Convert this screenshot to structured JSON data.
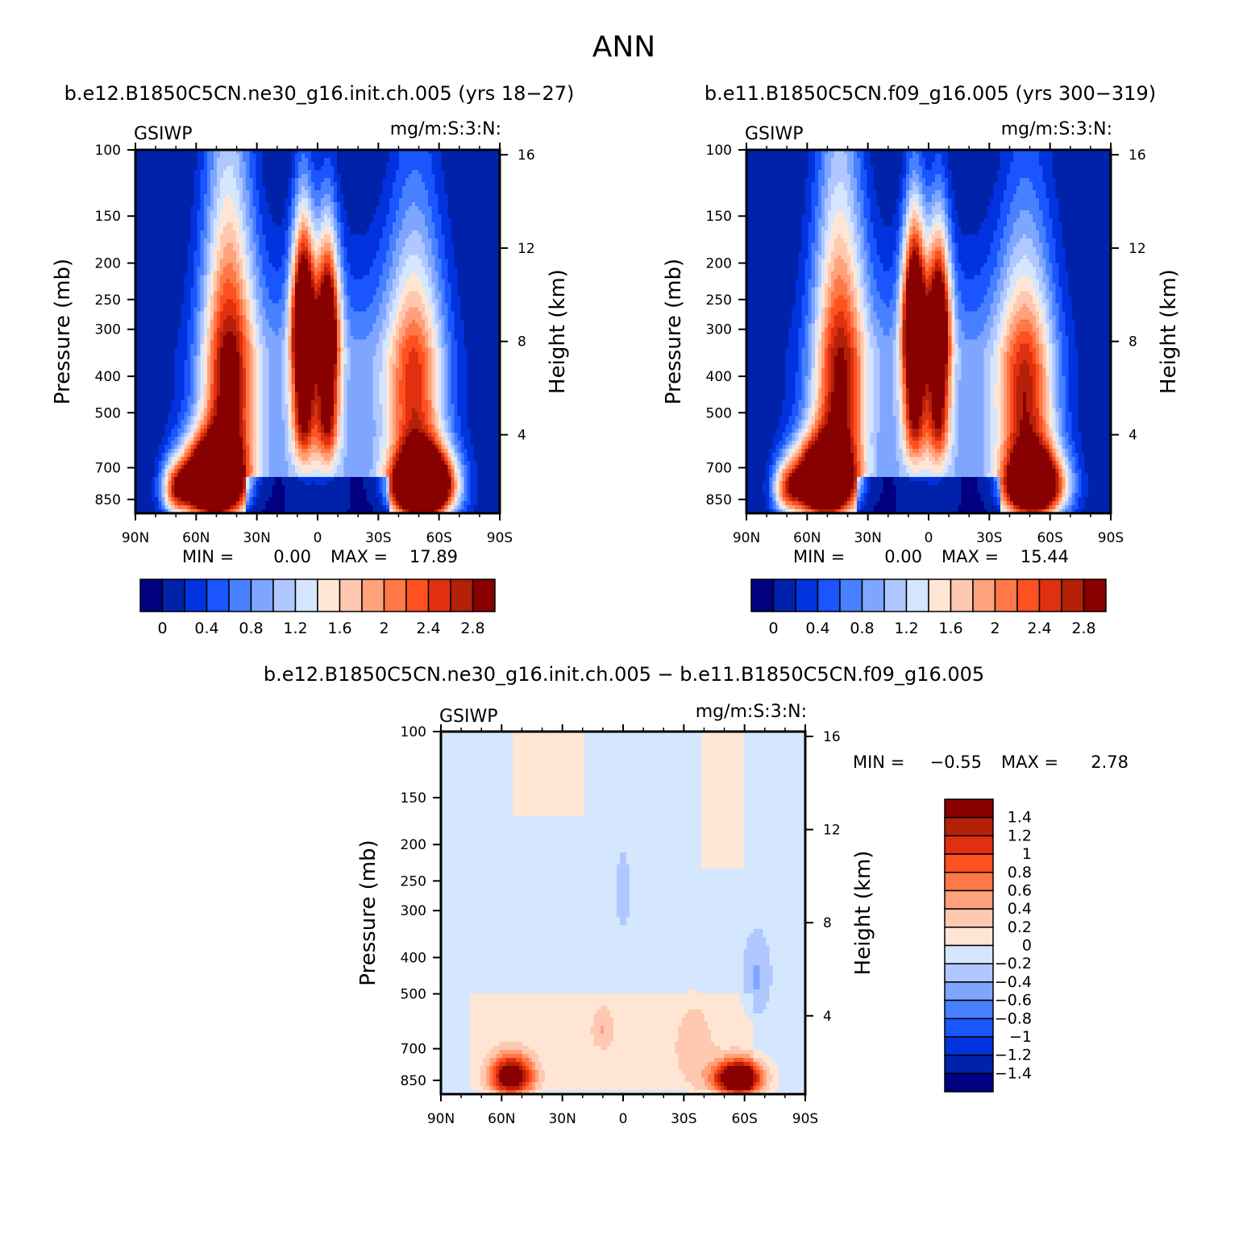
{
  "figure_title": "ANN",
  "palettes": {
    "abs": [
      "#000080",
      "#0022aa",
      "#0033dd",
      "#1a55ff",
      "#4781ff",
      "#7fa6ff",
      "#b0c8ff",
      "#d5e6ff",
      "#ffe6d4",
      "#ffc8b0",
      "#ffa17a",
      "#ff7848",
      "#ff5020",
      "#e03010",
      "#b42008",
      "#880000"
    ],
    "diff": [
      "#000080",
      "#0022aa",
      "#0033dd",
      "#1a55ff",
      "#4781ff",
      "#7fa6ff",
      "#b0c8ff",
      "#d5e6ff",
      "#ffe6d4",
      "#ffc8b0",
      "#ffa17a",
      "#ff7848",
      "#ff5020",
      "#e03010",
      "#b42008",
      "#880000"
    ]
  },
  "chart_data": [
    {
      "id": "case",
      "type": "heatmap",
      "title": "b.e12.B1850C5CN.ne30_g16.init.ch.005 (yrs 18−27)",
      "left_label": "GSIWP",
      "right_label": "mg/m:S:3:N:",
      "ylabel": "Pressure (mb)",
      "ylabel_right": "Height (km)",
      "x_ticks": [
        "90N",
        "60N",
        "30N",
        "0",
        "30S",
        "60S",
        "90S"
      ],
      "xlim": [
        90,
        -90
      ],
      "y_ticks": [
        100,
        150,
        200,
        250,
        300,
        400,
        500,
        700,
        850
      ],
      "ylim": [
        100,
        925
      ],
      "y_scale": "log",
      "right_ticks": [
        16,
        12,
        8,
        4
      ],
      "stats": {
        "min_label": "MIN =",
        "min": "0.00",
        "max_label": "MAX =",
        "max": "17.89"
      },
      "colorbar": {
        "orientation": "horizontal",
        "labels": [
          "0",
          "0.4",
          "0.8",
          "1.2",
          "1.6",
          "2",
          "2.4",
          "2.8"
        ]
      },
      "levels": [
        -0.1,
        0.2,
        0.4,
        0.6,
        0.8,
        1.0,
        1.2,
        1.4,
        1.6,
        1.8,
        2.0,
        2.2,
        2.4,
        2.6,
        2.8
      ],
      "field": {
        "features": [
          {
            "lat": 52,
            "p": 760,
            "amp": 5.5,
            "slat": 10,
            "sp": 120
          },
          {
            "lat": 44,
            "p": 400,
            "amp": 2.6,
            "slat": 9,
            "sp": 240
          },
          {
            "lat": 70,
            "p": 800,
            "amp": 1.8,
            "slat": 5,
            "sp": 90
          },
          {
            "lat": 7,
            "p": 270,
            "amp": 3.4,
            "slat": 4,
            "sp": 90
          },
          {
            "lat": 7,
            "p": 480,
            "amp": 2.2,
            "slat": 4,
            "sp": 130
          },
          {
            "lat": -5,
            "p": 280,
            "amp": 2.9,
            "slat": 4,
            "sp": 90
          },
          {
            "lat": -5,
            "p": 500,
            "amp": 2.0,
            "slat": 4,
            "sp": 120
          },
          {
            "lat": -52,
            "p": 780,
            "amp": 6.0,
            "slat": 10,
            "sp": 110
          },
          {
            "lat": -48,
            "p": 420,
            "amp": 2.1,
            "slat": 10,
            "sp": 200
          }
        ],
        "background": 1.1,
        "top_fade": 230,
        "near_surface_cutoff": 740
      }
    },
    {
      "id": "control",
      "type": "heatmap",
      "title": "b.e11.B1850C5CN.f09_g16.005 (yrs 300−319)",
      "left_label": "GSIWP",
      "right_label": "mg/m:S:3:N:",
      "ylabel": "Pressure (mb)",
      "ylabel_right": "Height (km)",
      "x_ticks": [
        "90N",
        "60N",
        "30N",
        "0",
        "30S",
        "60S",
        "90S"
      ],
      "xlim": [
        90,
        -90
      ],
      "y_ticks": [
        100,
        150,
        200,
        250,
        300,
        400,
        500,
        700,
        850
      ],
      "ylim": [
        100,
        925
      ],
      "y_scale": "log",
      "right_ticks": [
        16,
        12,
        8,
        4
      ],
      "stats": {
        "min_label": "MIN =",
        "min": "0.00",
        "max_label": "MAX =",
        "max": "15.44"
      },
      "colorbar": {
        "orientation": "horizontal",
        "labels": [
          "0",
          "0.4",
          "0.8",
          "1.2",
          "1.6",
          "2",
          "2.4",
          "2.8"
        ]
      },
      "levels": [
        -0.1,
        0.2,
        0.4,
        0.6,
        0.8,
        1.0,
        1.2,
        1.4,
        1.6,
        1.8,
        2.0,
        2.2,
        2.4,
        2.6,
        2.8
      ],
      "field": {
        "features": [
          {
            "lat": 52,
            "p": 760,
            "amp": 5.0,
            "slat": 10,
            "sp": 120
          },
          {
            "lat": 44,
            "p": 400,
            "amp": 2.4,
            "slat": 9,
            "sp": 240
          },
          {
            "lat": 70,
            "p": 800,
            "amp": 1.6,
            "slat": 5,
            "sp": 90
          },
          {
            "lat": 7,
            "p": 270,
            "amp": 3.6,
            "slat": 4,
            "sp": 90
          },
          {
            "lat": 7,
            "p": 480,
            "amp": 2.1,
            "slat": 4,
            "sp": 130
          },
          {
            "lat": -5,
            "p": 280,
            "amp": 3.1,
            "slat": 4,
            "sp": 90
          },
          {
            "lat": -5,
            "p": 500,
            "amp": 1.9,
            "slat": 4,
            "sp": 120
          },
          {
            "lat": -52,
            "p": 780,
            "amp": 4.6,
            "slat": 10,
            "sp": 110
          },
          {
            "lat": -48,
            "p": 440,
            "amp": 2.3,
            "slat": 10,
            "sp": 200
          }
        ],
        "background": 1.1,
        "top_fade": 230,
        "near_surface_cutoff": 740
      }
    },
    {
      "id": "difference",
      "type": "heatmap",
      "title": "b.e12.B1850C5CN.ne30_g16.init.ch.005 − b.e11.B1850C5CN.f09_g16.005",
      "left_label": "GSIWP",
      "right_label": "mg/m:S:3:N:",
      "ylabel": "Pressure (mb)",
      "ylabel_right": "Height (km)",
      "x_ticks": [
        "90N",
        "60N",
        "30N",
        "0",
        "30S",
        "60S",
        "90S"
      ],
      "xlim": [
        90,
        -90
      ],
      "y_ticks": [
        100,
        150,
        200,
        250,
        300,
        400,
        500,
        700,
        850
      ],
      "ylim": [
        100,
        925
      ],
      "y_scale": "log",
      "right_ticks": [
        16,
        12,
        8,
        4
      ],
      "stats": {
        "min_label": "MIN =",
        "min": "−0.55",
        "max_label": "MAX =",
        "max": "2.78"
      },
      "colorbar": {
        "orientation": "vertical",
        "labels": [
          "1.4",
          "1.2",
          "1",
          "0.8",
          "0.6",
          "0.4",
          "0.2",
          "0",
          "−0.2",
          "−0.4",
          "−0.6",
          "−0.8",
          "−1",
          "−1.2",
          "−1.4"
        ]
      },
      "levels": [
        -1.4,
        -1.2,
        -1.0,
        -0.8,
        -0.6,
        -0.4,
        -0.2,
        0,
        0.2,
        0.4,
        0.6,
        0.8,
        1.0,
        1.2,
        1.4
      ],
      "field": {
        "features": [
          {
            "lat": 55,
            "p": 830,
            "amp": 1.9,
            "slat": 7,
            "sp": 70
          },
          {
            "lat": -57,
            "p": 840,
            "amp": 2.4,
            "slat": 8,
            "sp": 60
          },
          {
            "lat": 10,
            "p": 620,
            "amp": 0.35,
            "slat": 4,
            "sp": 60
          },
          {
            "lat": -35,
            "p": 700,
            "amp": 0.25,
            "slat": 8,
            "sp": 140
          },
          {
            "lat": -66,
            "p": 450,
            "amp": -0.35,
            "slat": 5,
            "sp": 80
          },
          {
            "lat": 0,
            "p": 270,
            "amp": -0.3,
            "slat": 2.5,
            "sp": 45
          }
        ],
        "background": -0.08,
        "warm_columns": [
          {
            "lat": 37,
            "halfwidth": 18,
            "p_top": 100,
            "p_bottom": 170,
            "amp": 0.12
          },
          {
            "lat": -49,
            "halfwidth": 10,
            "p_top": 100,
            "p_bottom": 230,
            "amp": 0.12
          },
          {
            "lat": 5,
            "halfwidth": 70,
            "p_top": 500,
            "p_bottom": 900,
            "amp": 0.14
          }
        ]
      }
    }
  ]
}
